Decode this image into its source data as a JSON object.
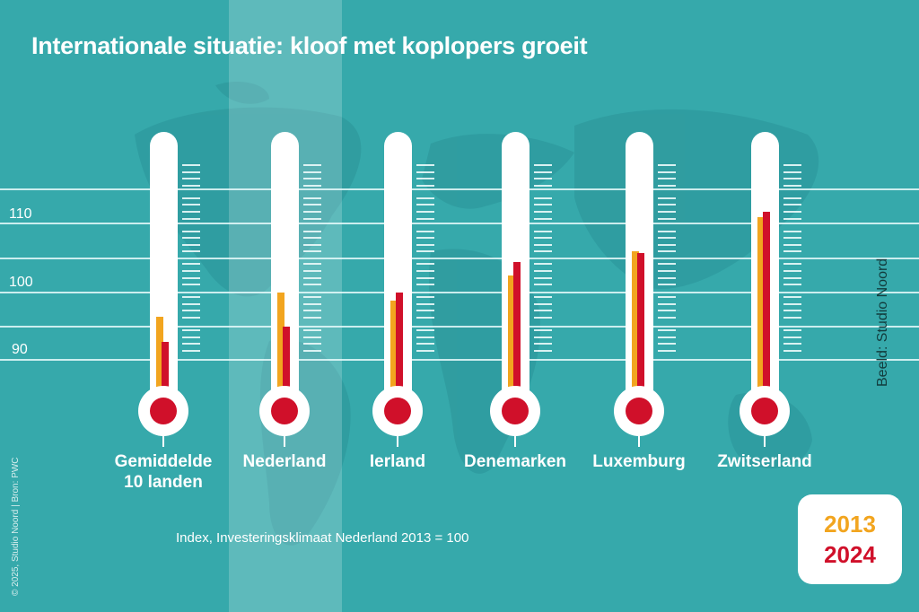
{
  "title": "Internationale situatie: kloof met koplopers groeit",
  "footnote": "Index, Investeringsklimaat Nederland 2013 = 100",
  "credit_left": "© 2025, Studio Noord | Bron: PWC",
  "credit_right": "Beeld: Studio Noord",
  "legend": {
    "year_a": "2013",
    "year_b": "2024"
  },
  "colors": {
    "background": "#36a9ab",
    "highlight_band": "#5dbcbd",
    "series_2013": "#f2a51f",
    "series_2024": "#d0102a",
    "tube": "#ffffff"
  },
  "y_axis": {
    "labels": [
      "110",
      "100",
      "90"
    ]
  },
  "chart_data": {
    "type": "bar",
    "title": "Internationale situatie: kloof met koplopers groeit",
    "subtitle": "Index, Investeringsklimaat Nederland 2013 = 100",
    "xlabel": "",
    "ylabel": "Index",
    "categories": [
      "Gemiddelde 10 landen",
      "Nederland",
      "Ierland",
      "Denemarken",
      "Luxemburg",
      "Zwitserland"
    ],
    "series": [
      {
        "name": "2013",
        "color": "#f2a51f",
        "values": [
          96.5,
          100,
          98.8,
          102.5,
          106,
          111
        ]
      },
      {
        "name": "2024",
        "color": "#d0102a",
        "values": [
          92.8,
          95,
          100,
          104.5,
          105.8,
          111.8
        ]
      }
    ],
    "y_ticks": [
      90,
      100,
      110
    ],
    "ylim": [
      85,
      120
    ],
    "grid": true,
    "highlighted_category": "Nederland",
    "legend_position": "bottom-right"
  },
  "thermometers": [
    {
      "label_line1": "Gemiddelde",
      "label_line2": "10 landen"
    },
    {
      "label_line1": "Nederland",
      "label_line2": ""
    },
    {
      "label_line1": "Ierland",
      "label_line2": ""
    },
    {
      "label_line1": "Denemarken",
      "label_line2": ""
    },
    {
      "label_line1": "Luxemburg",
      "label_line2": ""
    },
    {
      "label_line1": "Zwitserland",
      "label_line2": ""
    }
  ]
}
